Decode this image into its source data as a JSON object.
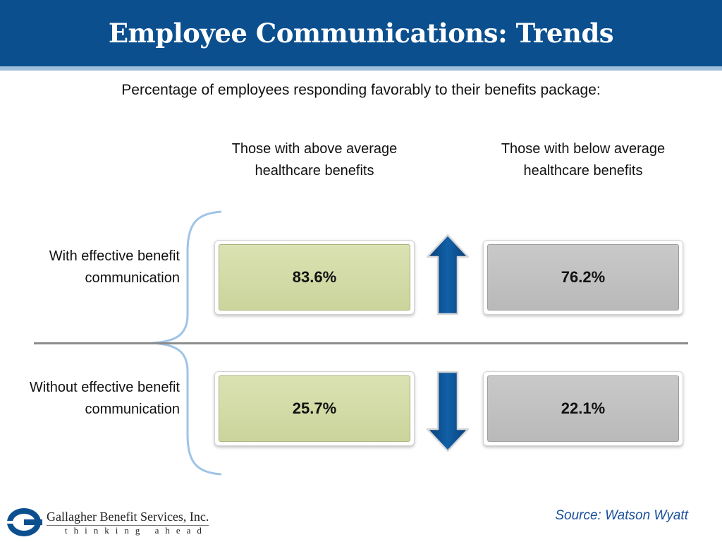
{
  "header": {
    "title": "Employee Communications: Trends"
  },
  "subtitle": "Percentage of employees responding favorably to their benefits package:",
  "columns": [
    {
      "label": "Those with above average healthcare benefits"
    },
    {
      "label": "Those with below average healthcare benefits"
    }
  ],
  "rows": [
    {
      "label": "With effective benefit communication",
      "values": [
        "83.6%",
        "76.2%"
      ],
      "trend": "up"
    },
    {
      "label": "Without effective benefit communication",
      "values": [
        "25.7%",
        "22.1%"
      ],
      "trend": "down"
    }
  ],
  "footer": {
    "company": "Gallagher Benefit Services, Inc.",
    "tagline": "thinking ahead",
    "source": "Source: Watson Wyatt"
  },
  "colors": {
    "header_bg": "#0b4f8f",
    "header_rule": "#9fbfdc",
    "green_box": "#cbd49b",
    "gray_box": "#bdbdbd",
    "arrow": "#0b4f8f",
    "brace": "#9fc4e6",
    "source_text": "#1a4f9c"
  },
  "icons": {
    "up_arrow": "up-arrow-icon",
    "down_arrow": "down-arrow-icon",
    "logo": "gallagher-g-logo"
  }
}
